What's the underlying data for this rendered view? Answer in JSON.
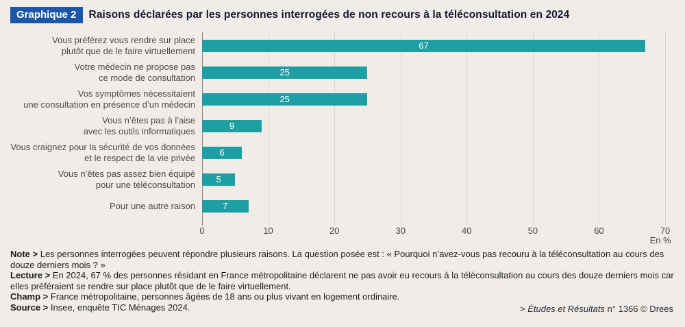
{
  "header": {
    "badge": "Graphique 2",
    "title": "Raisons déclarées par les personnes interrogées de non recours à la téléconsultation en 2024"
  },
  "colors": {
    "badge_blue": "#1b57a8",
    "bar_teal": "#1e9fa4",
    "background": "#f0ede9"
  },
  "chart_data": {
    "type": "bar",
    "orientation": "horizontal",
    "title": "Raisons déclarées par les personnes interrogées de non recours à la téléconsultation en 2024",
    "categories": [
      "Vous préférez vous rendre sur place plutôt que de le faire virtuellement",
      "Votre médecin ne propose pas ce mode de consultation",
      "Vos symptômes nécessitaient une consultation en présence d’un médecin",
      "Vous n’êtes pas à l’aise avec les outils informatiques",
      "Vous craignez pour la sécurité de vos données et le respect de la vie privée",
      "Vous n’êtes pas assez bien équipé pour une téléconsultation",
      "Pour une autre raison"
    ],
    "category_lines": [
      [
        "Vous préférez vous rendre sur place",
        "plutôt que de le faire virtuellement"
      ],
      [
        "Votre médecin ne propose pas",
        "ce mode de consultation"
      ],
      [
        "Vos symptômes nécessitaient",
        "une consultation en présence d’un médecin"
      ],
      [
        "Vous n’êtes pas à l’aise",
        "avec les outils informatiques"
      ],
      [
        "Vous craignez pour la sécurité de vos données",
        "et le respect de la vie privée"
      ],
      [
        "Vous n’êtes pas assez bien équipé",
        "pour une téléconsultation"
      ],
      [
        "Pour une autre raison"
      ]
    ],
    "values": [
      67,
      25,
      25,
      9,
      6,
      5,
      7
    ],
    "xlim": [
      0,
      70
    ],
    "xticks": [
      "0",
      "10",
      "20",
      "30",
      "40",
      "50",
      "60",
      "70"
    ],
    "unit_label": "En %",
    "grid": "vertical",
    "legend": "none",
    "bar_color": "#1e9fa4"
  },
  "notes": [
    {
      "label": "Note >",
      "text": "Les personnes interrogées peuvent répondre plusieurs raisons. La question posée est : « Pourquoi n’avez-vous pas recouru à la téléconsultation au cours des douze derniers mois ? »"
    },
    {
      "label": "Lecture >",
      "text": "En 2024, 67 % des personnes résidant en France métropolitaine déclarent ne pas avoir eu recours à la téléconsultation au cours des douze derniers mois car elles préféraient se rendre sur place plutôt que de le faire virtuellement."
    },
    {
      "label": "Champ >",
      "text": "France métropolitaine, personnes âgées de 18 ans ou plus vivant en logement ordinaire."
    },
    {
      "label": "Source >",
      "text": "Insee, enquête TIC Ménages 2024."
    }
  ],
  "footer": {
    "prefix": "> ",
    "journal": "Études et Résultats",
    "rest": " n° 1366 © Drees"
  }
}
